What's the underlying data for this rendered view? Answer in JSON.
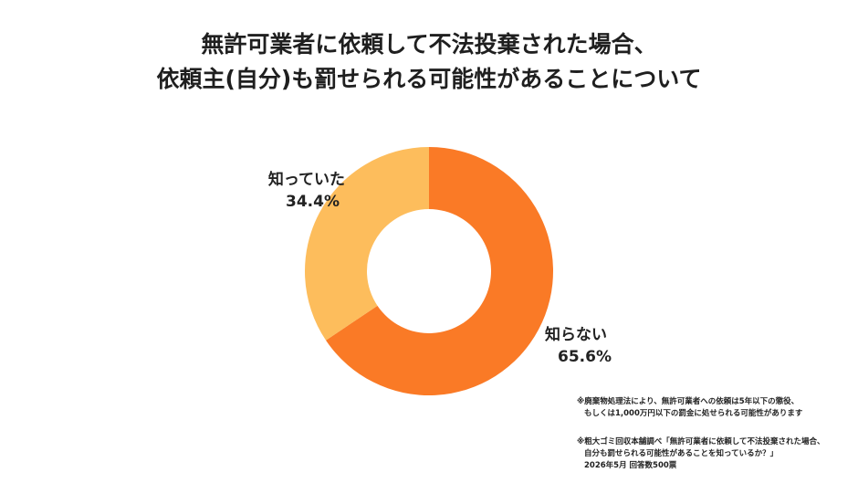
{
  "title": {
    "line1": "無許可業者に依頼して不法投棄された場合、",
    "line2": "依頼主(自分)も罰せられる可能性があることについて"
  },
  "chart_data": {
    "type": "pie",
    "donut": true,
    "categories": [
      "知らない",
      "知っていた"
    ],
    "values": [
      65.6,
      34.4
    ],
    "value_labels": [
      "65.6%",
      "34.4%"
    ],
    "colors": [
      "#FA7A26",
      "#FDBD5C"
    ],
    "title": "無許可業者に依頼して不法投棄された場合、依頼主(自分)も罰せられる可能性があることについて",
    "legend": "none"
  },
  "notes": {
    "note1_line1": "※廃棄物処理法により、無許可業者への依頼は5年以下の懲役、",
    "note1_line2": "もしくは1,000万円以下の罰金に処せられる可能性があります",
    "note2_line1": "※粗大ゴミ回収本舗調べ「無許可業者に依頼して不法投棄された場合、",
    "note2_line2": "自分も罰せられる可能性があることを知っているか？」",
    "note2_line3": "2026年5月 回答数500票"
  }
}
